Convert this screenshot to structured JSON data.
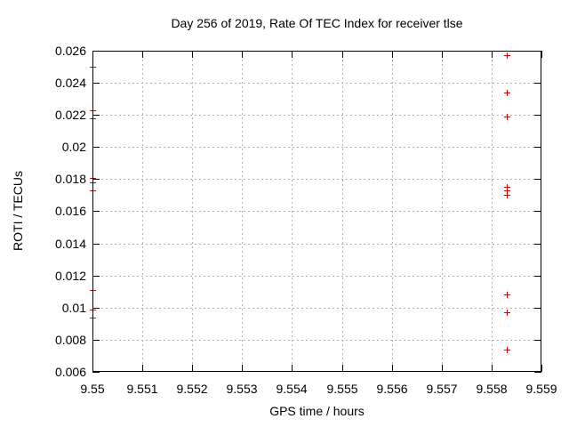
{
  "chart_data": {
    "type": "scatter",
    "title": "Day 256 of 2019, Rate Of TEC Index for receiver tlse",
    "xlabel": "GPS time / hours",
    "ylabel": "ROTI / TECUs",
    "xlim": [
      9.55,
      9.559
    ],
    "ylim": [
      0.006,
      0.026
    ],
    "xtick_values": [
      9.55,
      9.551,
      9.552,
      9.553,
      9.554,
      9.555,
      9.556,
      9.557,
      9.558,
      9.559
    ],
    "xtick_labels": [
      "9.55",
      "9.551",
      "9.552",
      "9.553",
      "9.554",
      "9.555",
      "9.556",
      "9.557",
      "9.558",
      "9.559"
    ],
    "ytick_values": [
      0.006,
      0.008,
      0.01,
      0.012,
      0.014,
      0.016,
      0.018,
      0.02,
      0.022,
      0.024,
      0.026
    ],
    "ytick_labels": [
      "0.006",
      "0.008",
      "0.01",
      "0.012",
      "0.014",
      "0.016",
      "0.018",
      "0.02",
      "0.022",
      "0.024",
      "0.026"
    ],
    "grid": true,
    "legend_position": "none",
    "colors": {
      "marker": "#dd0000",
      "grid": "#b0b0b0",
      "frame": "#000000",
      "background": "#ffffff",
      "text": "#000000"
    },
    "series": [
      {
        "name": "ROTI",
        "marker": "plus",
        "color": "#dd0000",
        "points": [
          {
            "x": 9.55,
            "y": 0.025
          },
          {
            "x": 9.55,
            "y": 0.0223
          },
          {
            "x": 9.55,
            "y": 0.0218
          },
          {
            "x": 9.55,
            "y": 0.0181
          },
          {
            "x": 9.55,
            "y": 0.0178
          },
          {
            "x": 9.55,
            "y": 0.0173
          },
          {
            "x": 9.55,
            "y": 0.0111
          },
          {
            "x": 9.55,
            "y": 0.0099
          },
          {
            "x": 9.55,
            "y": 0.0094
          },
          {
            "x": 9.5583,
            "y": 0.0257
          },
          {
            "x": 9.5583,
            "y": 0.0234
          },
          {
            "x": 9.5583,
            "y": 0.0219
          },
          {
            "x": 9.5583,
            "y": 0.0175
          },
          {
            "x": 9.5583,
            "y": 0.0173
          },
          {
            "x": 9.5583,
            "y": 0.017
          },
          {
            "x": 9.5583,
            "y": 0.0108
          },
          {
            "x": 9.5583,
            "y": 0.0097
          },
          {
            "x": 9.5583,
            "y": 0.0074
          }
        ]
      }
    ]
  }
}
